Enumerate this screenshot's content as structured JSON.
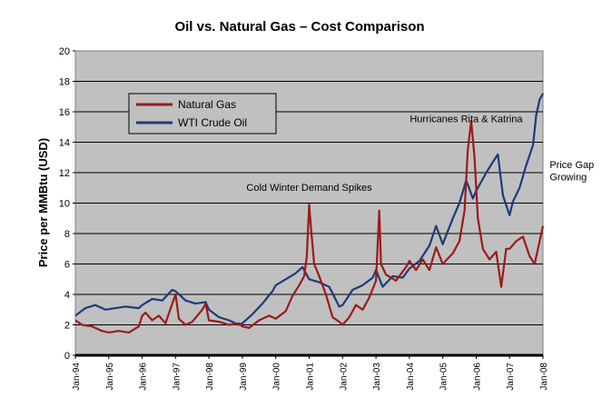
{
  "chart_data": {
    "type": "line",
    "title": "Oil vs. Natural Gas – Cost Comparison",
    "xlabel": "",
    "ylabel": "Price per MMBtu (USD)",
    "ylim": [
      0,
      20
    ],
    "yticks": [
      0,
      2,
      4,
      6,
      8,
      10,
      12,
      14,
      16,
      18,
      20
    ],
    "x_tick_labels": [
      "Jan-94",
      "Jan-95",
      "Jan-96",
      "Jan-97",
      "Jan-98",
      "Jan-99",
      "Jan-00",
      "Jan-01",
      "Jan-02",
      "Jan-03",
      "Jan-04",
      "Jan-05",
      "Jan-06",
      "Jan-07",
      "Jan-08"
    ],
    "x_range": [
      1994.0,
      2008.0
    ],
    "grid": true,
    "legend_position": "top-left",
    "colors": {
      "plot_bg": "#c0c0c0",
      "gas": "#9b1b1b",
      "oil": "#1f3a7a"
    },
    "series": [
      {
        "name": "Natural Gas",
        "color": "#9b1b1b",
        "points": [
          [
            1994.0,
            2.3
          ],
          [
            1994.2,
            2.0
          ],
          [
            1994.5,
            1.9
          ],
          [
            1994.8,
            1.6
          ],
          [
            1995.0,
            1.5
          ],
          [
            1995.3,
            1.6
          ],
          [
            1995.6,
            1.5
          ],
          [
            1995.9,
            1.9
          ],
          [
            1996.0,
            2.6
          ],
          [
            1996.1,
            2.8
          ],
          [
            1996.3,
            2.3
          ],
          [
            1996.5,
            2.6
          ],
          [
            1996.7,
            2.1
          ],
          [
            1996.9,
            3.4
          ],
          [
            1997.0,
            4.0
          ],
          [
            1997.1,
            2.4
          ],
          [
            1997.3,
            2.0
          ],
          [
            1997.5,
            2.2
          ],
          [
            1997.8,
            3.0
          ],
          [
            1997.9,
            3.4
          ],
          [
            1998.0,
            2.3
          ],
          [
            1998.3,
            2.2
          ],
          [
            1998.6,
            2.0
          ],
          [
            1998.9,
            2.1
          ],
          [
            1999.0,
            1.9
          ],
          [
            1999.2,
            1.8
          ],
          [
            1999.5,
            2.3
          ],
          [
            1999.8,
            2.6
          ],
          [
            2000.0,
            2.4
          ],
          [
            2000.3,
            2.9
          ],
          [
            2000.5,
            3.9
          ],
          [
            2000.7,
            4.6
          ],
          [
            2000.85,
            5.2
          ],
          [
            2000.93,
            6.5
          ],
          [
            2001.0,
            9.9
          ],
          [
            2001.05,
            8.5
          ],
          [
            2001.15,
            6.0
          ],
          [
            2001.3,
            5.2
          ],
          [
            2001.5,
            4.0
          ],
          [
            2001.7,
            2.5
          ],
          [
            2001.9,
            2.2
          ],
          [
            2002.0,
            2.0
          ],
          [
            2002.2,
            2.5
          ],
          [
            2002.4,
            3.3
          ],
          [
            2002.6,
            3.0
          ],
          [
            2002.8,
            3.8
          ],
          [
            2003.0,
            4.9
          ],
          [
            2003.1,
            9.5
          ],
          [
            2003.15,
            6.0
          ],
          [
            2003.3,
            5.3
          ],
          [
            2003.6,
            4.9
          ],
          [
            2003.9,
            5.8
          ],
          [
            2004.0,
            6.2
          ],
          [
            2004.2,
            5.6
          ],
          [
            2004.4,
            6.3
          ],
          [
            2004.6,
            5.6
          ],
          [
            2004.8,
            7.1
          ],
          [
            2005.0,
            6.0
          ],
          [
            2005.3,
            6.7
          ],
          [
            2005.5,
            7.5
          ],
          [
            2005.65,
            9.5
          ],
          [
            2005.75,
            13.5
          ],
          [
            2005.85,
            15.4
          ],
          [
            2005.95,
            13.0
          ],
          [
            2006.05,
            9.0
          ],
          [
            2006.2,
            7.0
          ],
          [
            2006.4,
            6.3
          ],
          [
            2006.6,
            6.8
          ],
          [
            2006.75,
            4.5
          ],
          [
            2006.9,
            7.0
          ],
          [
            2007.0,
            7.0
          ],
          [
            2007.2,
            7.5
          ],
          [
            2007.4,
            7.8
          ],
          [
            2007.6,
            6.5
          ],
          [
            2007.75,
            6.0
          ],
          [
            2007.9,
            7.5
          ],
          [
            2008.0,
            8.5
          ]
        ]
      },
      {
        "name": "WTI Crude Oil",
        "color": "#1f3a7a",
        "points": [
          [
            1994.0,
            2.6
          ],
          [
            1994.3,
            3.1
          ],
          [
            1994.6,
            3.3
          ],
          [
            1994.9,
            3.0
          ],
          [
            1995.2,
            3.1
          ],
          [
            1995.5,
            3.2
          ],
          [
            1995.9,
            3.1
          ],
          [
            1996.0,
            3.3
          ],
          [
            1996.3,
            3.7
          ],
          [
            1996.6,
            3.6
          ],
          [
            1996.9,
            4.3
          ],
          [
            1997.0,
            4.2
          ],
          [
            1997.3,
            3.6
          ],
          [
            1997.6,
            3.4
          ],
          [
            1997.9,
            3.5
          ],
          [
            1998.0,
            3.0
          ],
          [
            1998.3,
            2.5
          ],
          [
            1998.6,
            2.3
          ],
          [
            1998.9,
            2.0
          ],
          [
            1999.0,
            2.1
          ],
          [
            1999.3,
            2.7
          ],
          [
            1999.6,
            3.4
          ],
          [
            1999.9,
            4.2
          ],
          [
            2000.0,
            4.6
          ],
          [
            2000.3,
            5.0
          ],
          [
            2000.6,
            5.4
          ],
          [
            2000.8,
            5.8
          ],
          [
            2001.0,
            5.0
          ],
          [
            2001.3,
            4.8
          ],
          [
            2001.6,
            4.5
          ],
          [
            2001.9,
            3.2
          ],
          [
            2002.0,
            3.3
          ],
          [
            2002.3,
            4.3
          ],
          [
            2002.6,
            4.6
          ],
          [
            2002.9,
            5.1
          ],
          [
            2003.0,
            5.6
          ],
          [
            2003.2,
            4.5
          ],
          [
            2003.5,
            5.2
          ],
          [
            2003.8,
            5.1
          ],
          [
            2004.0,
            5.7
          ],
          [
            2004.3,
            6.2
          ],
          [
            2004.6,
            7.2
          ],
          [
            2004.8,
            8.5
          ],
          [
            2005.0,
            7.3
          ],
          [
            2005.3,
            9.0
          ],
          [
            2005.5,
            10.0
          ],
          [
            2005.7,
            11.5
          ],
          [
            2005.9,
            10.3
          ],
          [
            2006.0,
            10.8
          ],
          [
            2006.3,
            12.0
          ],
          [
            2006.5,
            12.7
          ],
          [
            2006.65,
            13.2
          ],
          [
            2006.8,
            10.5
          ],
          [
            2007.0,
            9.2
          ],
          [
            2007.1,
            10.1
          ],
          [
            2007.3,
            11.0
          ],
          [
            2007.5,
            12.5
          ],
          [
            2007.7,
            13.8
          ],
          [
            2007.8,
            15.8
          ],
          [
            2007.9,
            16.8
          ],
          [
            2008.0,
            17.2
          ]
        ]
      }
    ],
    "annotations": [
      {
        "text": "Cold Winter Demand Spikes",
        "x": 2001.0,
        "y": 10.8
      },
      {
        "text": "Hurricanes Rita & Katrina",
        "x": 2005.7,
        "y": 15.3
      },
      {
        "text": "Price Gap",
        "x": 2008.2,
        "y": 12.3
      },
      {
        "text": "Growing",
        "x": 2008.2,
        "y": 11.5
      }
    ]
  }
}
